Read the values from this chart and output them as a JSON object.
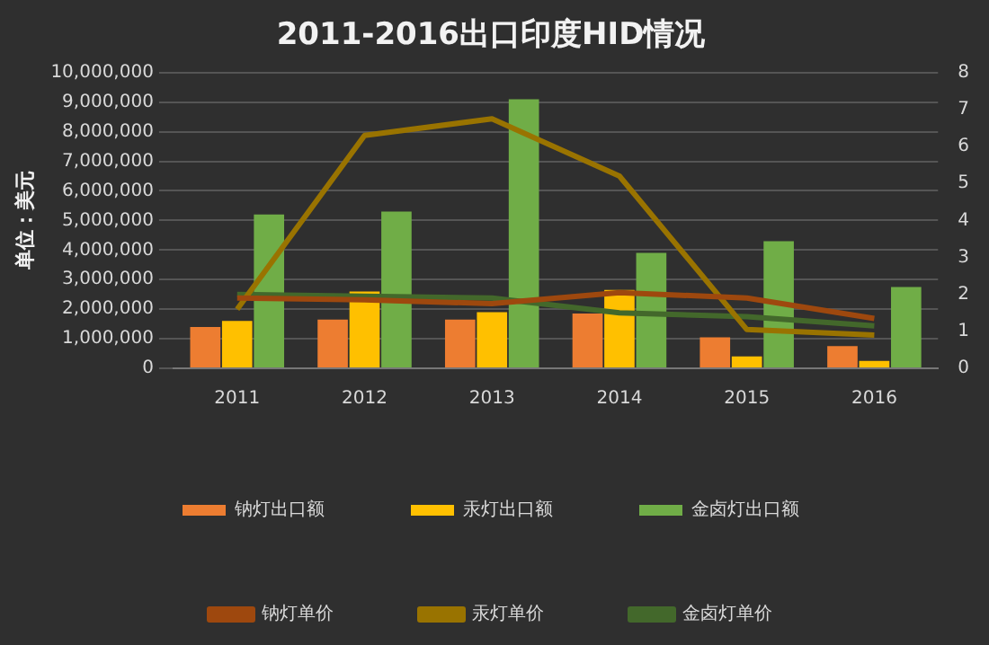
{
  "chart_data": {
    "type": "bar",
    "title": "2011-2016出口印度HID情况",
    "ylabel": "单位：美元",
    "categories": [
      "2011",
      "2012",
      "2013",
      "2014",
      "2015",
      "2016"
    ],
    "series": [
      {
        "name": "钠灯出口额",
        "color": "#ed7d31",
        "values": [
          1400000,
          1650000,
          1650000,
          1850000,
          1050000,
          750000
        ]
      },
      {
        "name": "汞灯出口额",
        "color": "#ffc000",
        "values": [
          1600000,
          2600000,
          1900000,
          2650000,
          400000,
          250000
        ]
      },
      {
        "name": "金卤灯出口额",
        "color": "#70ad47",
        "values": [
          5200000,
          5300000,
          9100000,
          3900000,
          4300000,
          2750000
        ]
      },
      {
        "name": "钠灯单价",
        "type": "line",
        "axis": "y2",
        "color": "#9e480e",
        "values": [
          1.9,
          1.85,
          1.75,
          2.05,
          1.9,
          1.35
        ]
      },
      {
        "name": "汞灯单价",
        "type": "line",
        "axis": "y2",
        "color": "#997300",
        "values": [
          1.6,
          6.3,
          6.75,
          5.2,
          1.05,
          0.9
        ]
      },
      {
        "name": "金卤灯单价",
        "type": "line",
        "axis": "y2",
        "color": "#43682b",
        "values": [
          2.0,
          1.95,
          1.9,
          1.5,
          1.4,
          1.15
        ]
      }
    ],
    "ylim": [
      0,
      10000000
    ],
    "yticks": [
      0,
      {
        "value": 1000000,
        "label": "1,000,000"
      },
      {
        "value": 2000000,
        "label": "2,000,000"
      },
      {
        "value": 3000000,
        "label": "3,000,000"
      },
      {
        "value": 4000000,
        "label": "4,000,000"
      },
      {
        "value": 5000000,
        "label": "5,000,000"
      },
      {
        "value": 6000000,
        "label": "6,000,000"
      },
      {
        "value": 7000000,
        "label": "7,000,000"
      },
      {
        "value": 8000000,
        "label": "8,000,000"
      },
      {
        "value": 9000000,
        "label": "9,000,000"
      },
      {
        "value": 10000000,
        "label": "10,000,000"
      }
    ],
    "y2lim": [
      0,
      8
    ],
    "y2ticks": [
      0,
      1,
      2,
      3,
      4,
      5,
      6,
      7,
      8
    ],
    "grid": "y",
    "legend": "bottom",
    "marker": "none"
  }
}
